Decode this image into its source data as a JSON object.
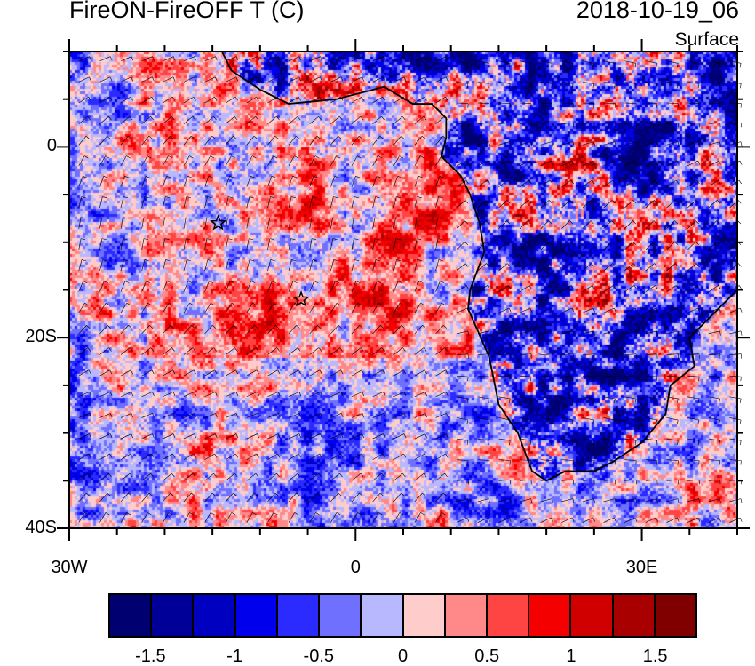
{
  "title_left": "FireON-FireOFF T (C)",
  "title_right": "2018-10-19_06",
  "subtitle": "Surface",
  "chart_data": {
    "type": "heatmap",
    "title": "FireON-FireOFF T (C)",
    "valid_time": "2018-10-19_06",
    "level": "Surface",
    "lon_range": [
      -30,
      40
    ],
    "lat_range": [
      -40,
      10
    ],
    "x_ticks": [
      {
        "value": -30,
        "label": "30W"
      },
      {
        "value": 0,
        "label": "0"
      },
      {
        "value": 30,
        "label": "30E"
      }
    ],
    "y_ticks": [
      {
        "value": 0,
        "label": "0"
      },
      {
        "value": -20,
        "label": "20S"
      },
      {
        "value": -40,
        "label": "40S"
      }
    ],
    "markers": [
      {
        "type": "star",
        "lon": -14.4,
        "lat": -8
      },
      {
        "type": "star",
        "lon": -5.7,
        "lat": -16
      }
    ],
    "overlay": "wind barbs",
    "colorbar": {
      "levels": [
        -1.5,
        -1.25,
        -1,
        -0.75,
        -0.5,
        -0.25,
        0,
        0.25,
        0.5,
        0.75,
        1,
        1.25,
        1.5
      ],
      "labels": [
        {
          "value": -1.5,
          "label": "-1.5"
        },
        {
          "value": -1,
          "label": "-1"
        },
        {
          "value": -0.5,
          "label": "-0.5"
        },
        {
          "value": 0,
          "label": "0"
        },
        {
          "value": 0.5,
          "label": "0.5"
        },
        {
          "value": 1,
          "label": "1"
        },
        {
          "value": 1.5,
          "label": "1.5"
        }
      ],
      "colors": [
        "#000070",
        "#000098",
        "#0000c0",
        "#0000ec",
        "#2b2bff",
        "#7070ff",
        "#b8b8ff",
        "#ffcccc",
        "#ff8888",
        "#ff4444",
        "#f50000",
        "#d00000",
        "#a80000",
        "#800000"
      ]
    }
  }
}
